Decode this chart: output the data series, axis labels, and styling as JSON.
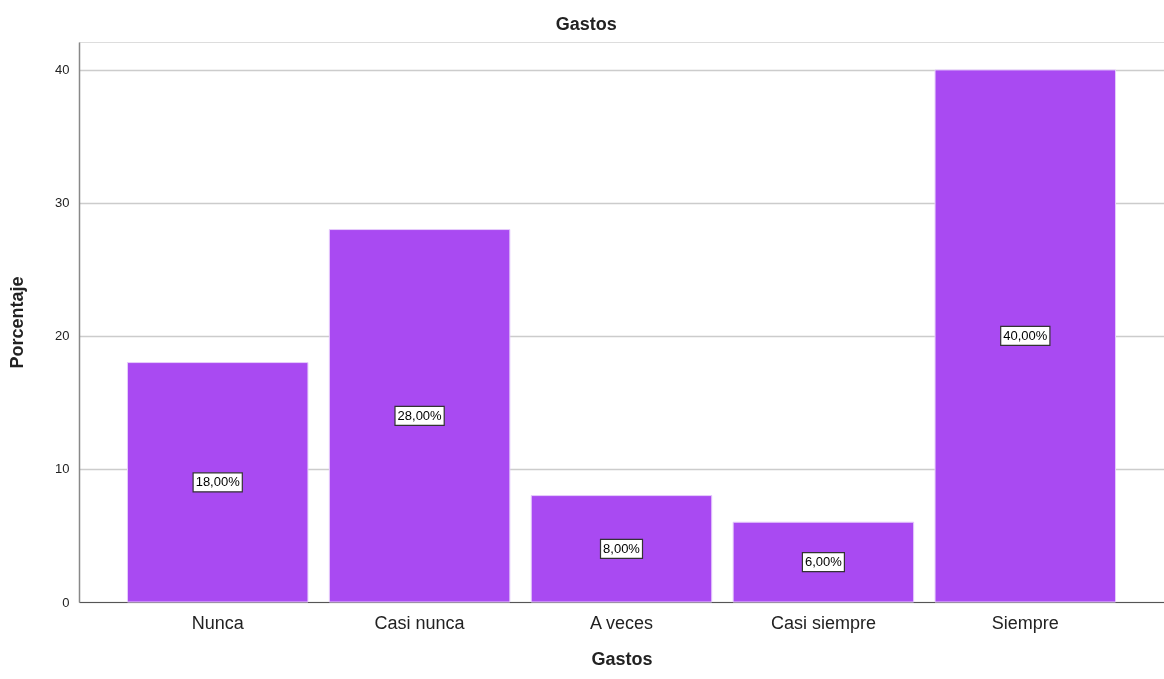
{
  "chart_data": {
    "type": "bar",
    "title": "Gastos",
    "xlabel": "Gastos",
    "ylabel": "Porcentaje",
    "categories": [
      "Nunca",
      "Casi nunca",
      "A veces",
      "Casi siempre",
      "Siempre"
    ],
    "values": [
      18,
      28,
      8,
      6,
      40
    ],
    "color": "#a94af2",
    "value_labels": [
      "18,00%",
      "28,00%",
      "8,00%",
      "6,00%",
      "40,00%"
    ],
    "ylim": [
      0,
      42.1
    ],
    "yticks": [
      0,
      10,
      20,
      30,
      40
    ],
    "grid": "y"
  }
}
